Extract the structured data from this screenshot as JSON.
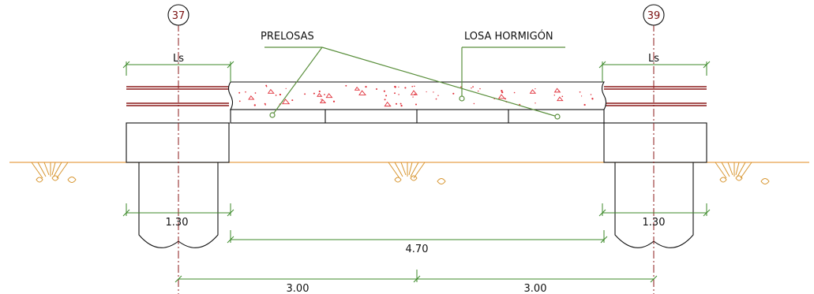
{
  "axes": [
    {
      "label": "37"
    },
    {
      "label": "39"
    }
  ],
  "callouts": {
    "prelosas": "PRELOSAS",
    "losa": "LOSA HORMIGÓN"
  },
  "dimensions": {
    "ls_left": "Ls",
    "ls_right": "Ls",
    "pile_left": "1.30",
    "pile_right": "1.30",
    "span": "4.70",
    "axis_left": "3.00",
    "axis_right": "3.00"
  },
  "colors": {
    "dimension": "#3c8a2a",
    "axis": "#8b1a1a",
    "ground": "#e8a04a",
    "aggregate": "#e0303a"
  }
}
